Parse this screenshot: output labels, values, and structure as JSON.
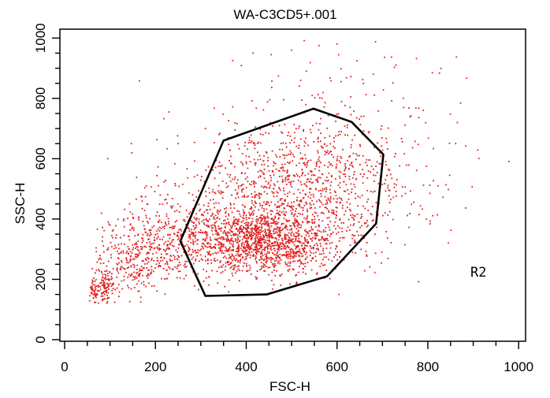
{
  "chart_data": {
    "type": "scatter",
    "title": "WA-C3CD5+.001",
    "xlabel": "FSC-H",
    "ylabel": "SSC-H",
    "xlim": [
      0,
      1024
    ],
    "ylim": [
      0,
      1024
    ],
    "xticks": [
      0,
      200,
      400,
      600,
      800,
      1000
    ],
    "yticks": [
      0,
      200,
      400,
      600,
      800,
      1000
    ],
    "xtick_labels": [
      "0",
      "200",
      "400",
      "600",
      "800",
      "1000"
    ],
    "ytick_labels": [
      "0",
      "200",
      "400",
      "600",
      "800",
      "1000"
    ],
    "grid": false,
    "point_color": "#e02020",
    "gate": {
      "name": "R2",
      "color": "#000000",
      "vertices": [
        [
          350,
          660
        ],
        [
          548,
          766
        ],
        [
          632,
          722
        ],
        [
          702,
          614
        ],
        [
          686,
          385
        ],
        [
          578,
          210
        ],
        [
          445,
          150
        ],
        [
          310,
          145
        ],
        [
          255,
          327
        ]
      ]
    },
    "clusters": [
      {
        "cx": 430,
        "cy": 330,
        "sx": 80,
        "sy": 55,
        "n": 1300
      },
      {
        "cx": 500,
        "cy": 460,
        "sx": 130,
        "sy": 120,
        "n": 1050
      },
      {
        "cx": 600,
        "cy": 650,
        "sx": 120,
        "sy": 140,
        "n": 280
      },
      {
        "cx": 210,
        "cy": 330,
        "sx": 60,
        "sy": 70,
        "n": 380
      },
      {
        "cx": 130,
        "cy": 235,
        "sx": 40,
        "sy": 45,
        "n": 200
      },
      {
        "cx": 78,
        "cy": 165,
        "sx": 20,
        "sy": 22,
        "n": 130
      }
    ],
    "outliers": [
      [
        165,
        858
      ],
      [
        775,
        932
      ],
      [
        810,
        885
      ],
      [
        600,
        980
      ],
      [
        790,
        760
      ],
      [
        848,
        545
      ],
      [
        560,
        975
      ],
      [
        500,
        960
      ],
      [
        455,
        945
      ],
      [
        415,
        950
      ],
      [
        230,
        755
      ],
      [
        180,
        510
      ],
      [
        95,
        600
      ],
      [
        730,
        910
      ],
      [
        520,
        860
      ],
      [
        865,
        720
      ],
      [
        100,
        380
      ],
      [
        310,
        700
      ],
      [
        250,
        650
      ],
      [
        680,
        880
      ]
    ]
  }
}
